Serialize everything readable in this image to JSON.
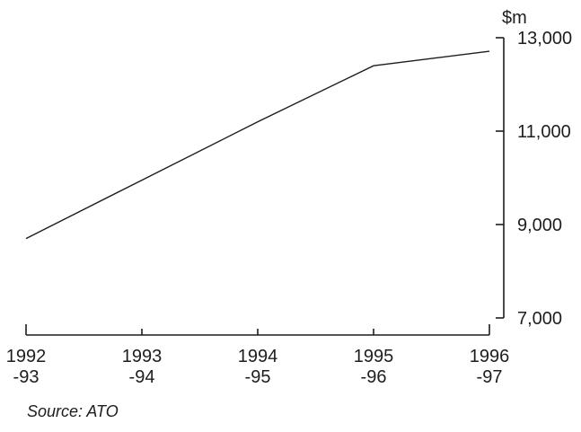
{
  "chart": {
    "unit_label": "$m",
    "source": "Source: ATO",
    "y_axis": {
      "tick_labels": [
        "13,000",
        "11,000",
        "9,000",
        "7,000"
      ],
      "tick_values": [
        13000,
        11000,
        9000,
        7000
      ]
    },
    "x_axis": {
      "labels": [
        [
          "1992",
          "-93"
        ],
        [
          "1993",
          "-94"
        ],
        [
          "1994",
          "-95"
        ],
        [
          "1995",
          "-96"
        ],
        [
          "1996",
          "-97"
        ]
      ]
    }
  },
  "chart_data": {
    "type": "line",
    "categories": [
      "1992-93",
      "1993-94",
      "1994-95",
      "1995-96",
      "1996-97"
    ],
    "values": [
      8700,
      9950,
      11200,
      12400,
      12710
    ],
    "title": "",
    "xlabel": "",
    "ylabel": "$m",
    "ylim": [
      7000,
      13000
    ],
    "yticks": [
      7000,
      9000,
      11000,
      13000
    ],
    "grid": false,
    "legend": "none",
    "line_color": "#1d1d1b",
    "background_color": "#ffffff",
    "source": "Source: ATO"
  }
}
